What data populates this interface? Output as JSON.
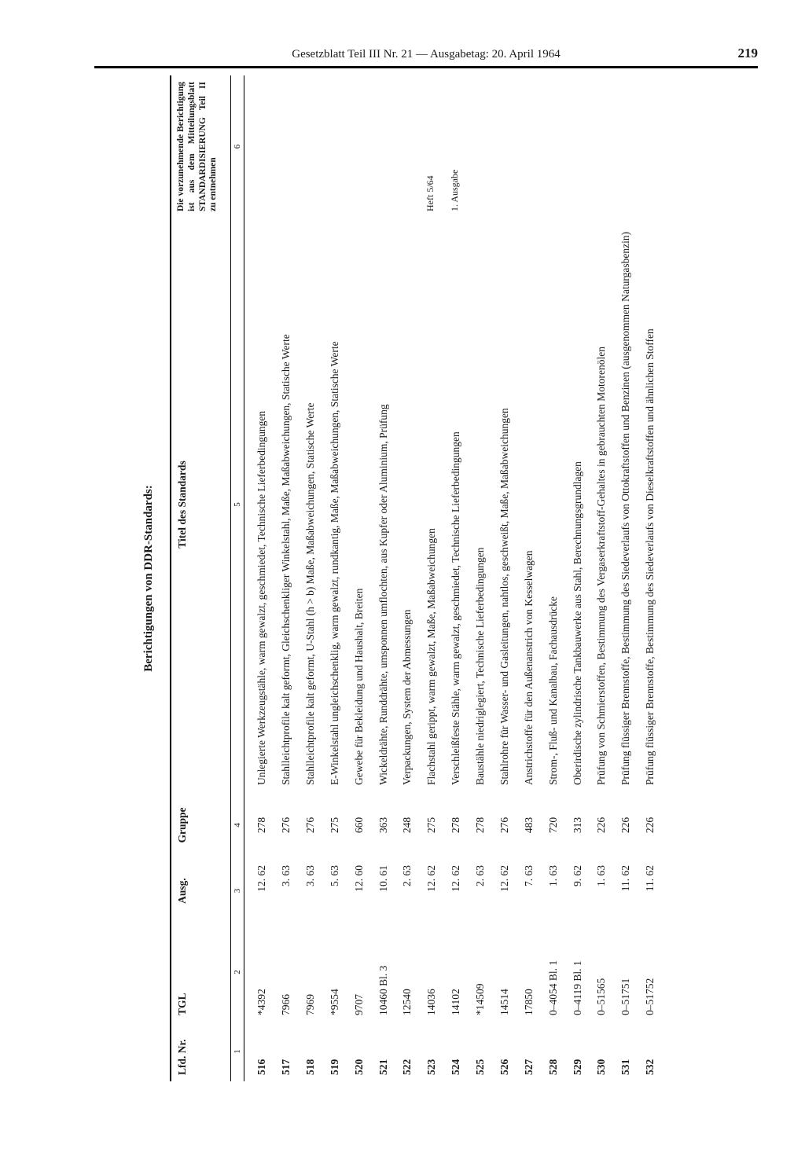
{
  "header": {
    "running_title": "Gesetzblatt Teil III Nr. 21 — Ausgabetag: 20. April 1964",
    "page_number": "219"
  },
  "section_title": "Berichtigungen von DDR-Standards:",
  "columns": {
    "lfd": "Lfd. Nr.",
    "tgl": "TGL",
    "ausg": "Ausg.",
    "gruppe": "Gruppe",
    "titel": "Titel des Standards",
    "note": "Die vorzunehmende Berichtigung ist aus dem Mitteilungsblatt STANDARDISIERUNG Teil II zu entnehmen"
  },
  "sub_headers": [
    "1",
    "2",
    "3",
    "4",
    "5",
    "6"
  ],
  "rows": [
    {
      "lfd": "516",
      "tgl": "*4392",
      "ausg": "12. 62",
      "gruppe": "278",
      "titel": "Unlegierte Werkzeugstähle, warm gewalzt, geschmiedet, Technische Lieferbedingungen",
      "note": ""
    },
    {
      "lfd": "517",
      "tgl": "7966",
      "ausg": "3. 63",
      "gruppe": "276",
      "titel": "Stahlleichtprofile kalt geformt, Gleichschenkliger Winkelstahl, Maße, Maßabweichungen, Statische Werte",
      "note": ""
    },
    {
      "lfd": "518",
      "tgl": "7969",
      "ausg": "3. 63",
      "gruppe": "276",
      "titel": "Stahlleichtprofile kalt geformt, U-Stahl (h > b) Maße, Maßabweichungen, Statische Werte",
      "note": ""
    },
    {
      "lfd": "519",
      "tgl": "*9554",
      "ausg": "5. 63",
      "gruppe": "275",
      "titel": "E-Winkelstahl ungleichschenklig, warm gewalzt, rundkantig, Maße, Maßabweichungen, Statische Werte",
      "note": ""
    },
    {
      "lfd": "520",
      "tgl": "9707",
      "ausg": "12. 60",
      "gruppe": "660",
      "titel": "Gewebe für Bekleidung und Haushalt, Breiten",
      "note": ""
    },
    {
      "lfd": "521",
      "tgl": "10460 Bl. 3",
      "ausg": "10. 61",
      "gruppe": "363",
      "titel": "Wickeldrähte, Runddrähte, umsponnen umflochten, aus Kupfer oder Aluminium, Prüfung",
      "note": ""
    },
    {
      "lfd": "522",
      "tgl": "12540",
      "ausg": "2. 63",
      "gruppe": "248",
      "titel": "Verpackungen, System der Abmessungen",
      "note": ""
    },
    {
      "lfd": "523",
      "tgl": "14036",
      "ausg": "12. 62",
      "gruppe": "275",
      "titel": "Flachstahl gerippt, warm gewalzt, Maße, Maßabweichungen",
      "note": "Heft 5/64"
    },
    {
      "lfd": "524",
      "tgl": "14102",
      "ausg": "12. 62",
      "gruppe": "278",
      "titel": "Verschleißfeste Stähle, warm gewalzt, geschmiedet, Technische Lieferbedingungen",
      "note": "1. Ausgabe"
    },
    {
      "lfd": "525",
      "tgl": "*14509",
      "ausg": "2. 63",
      "gruppe": "278",
      "titel": "Baustähle niedriglegiert, Technische Lieferbedingungen",
      "note": ""
    },
    {
      "lfd": "526",
      "tgl": "14514",
      "ausg": "12. 62",
      "gruppe": "276",
      "titel": "Stahlrohre für Wasser- und Gasleitungen, nahtlos, geschweißt, Maße, Maßabweichungen",
      "note": ""
    },
    {
      "lfd": "527",
      "tgl": "17850",
      "ausg": "7. 63",
      "gruppe": "483",
      "titel": "Anstrichstoffe für den Außenanstrich von Kesselwagen",
      "note": ""
    },
    {
      "lfd": "528",
      "tgl": "0–4054 Bl. 1",
      "ausg": "1. 63",
      "gruppe": "720",
      "titel": "Strom-, Fluß- und Kanalbau, Fachausdrücke",
      "note": ""
    },
    {
      "lfd": "529",
      "tgl": "0–4119 Bl. 1",
      "ausg": "9. 62",
      "gruppe": "313",
      "titel": "Oberirdische zylindrische Tankbauwerke aus Stahl, Berechnungsgrundlagen",
      "note": ""
    },
    {
      "lfd": "530",
      "tgl": "0–51565",
      "ausg": "1. 63",
      "gruppe": "226",
      "titel": "Prüfung von Schmierstoffen, Bestimmung des Vergaserkraftstoff-Gehaltes in gebrauchten Motorenölen",
      "note": ""
    },
    {
      "lfd": "531",
      "tgl": "0–51751",
      "ausg": "11. 62",
      "gruppe": "226",
      "titel": "Prüfung flüssiger Brennstoffe, Bestimmung des Siedeverlaufs von Ottokraftstoffen und Benzinen (ausgenommen Naturgasbenzin)",
      "note": ""
    },
    {
      "lfd": "532",
      "tgl": "0–51752",
      "ausg": "11. 62",
      "gruppe": "226",
      "titel": "Prüfung flüssiger Brennstoffe, Bestimmung des Siedeverlaufs von Dieselkraftstoffen und ähnlichen Stoffen",
      "note": ""
    }
  ]
}
